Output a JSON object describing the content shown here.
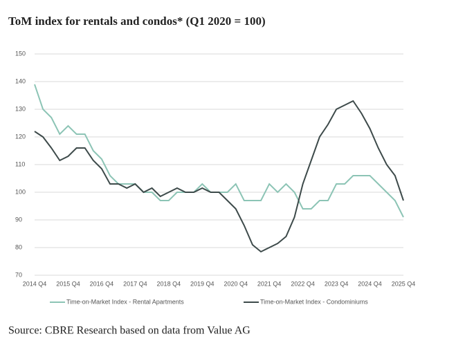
{
  "chart_data": {
    "type": "line",
    "title": "ToM index for rentals and condos* (Q1 2020 = 100)",
    "source": "Source: CBRE Research based on data from Value AG",
    "categories": [
      "2014 Q4",
      null,
      null,
      null,
      "2015 Q4",
      null,
      null,
      null,
      "2016 Q4",
      null,
      null,
      null,
      "2017 Q4",
      null,
      null,
      null,
      "2018 Q4",
      null,
      null,
      null,
      "2019 Q4",
      null,
      null,
      null,
      "2020 Q4",
      null,
      null,
      null,
      "2021 Q4",
      null,
      null,
      null,
      "2022 Q4",
      null,
      null,
      null,
      "2023 Q4",
      null,
      null,
      null,
      "2024 Q4",
      null,
      null,
      null,
      "2025 Q4"
    ],
    "series": [
      {
        "name": "Time-on-Market Index - Rental Apartments",
        "color": "#8cc4b5",
        "values": [
          139,
          130,
          127,
          121,
          124,
          121,
          121,
          115,
          112,
          106,
          103,
          103,
          103,
          100,
          100,
          97,
          97,
          100,
          100,
          100,
          103,
          100,
          100,
          100,
          103,
          97,
          97,
          97,
          103,
          100,
          103,
          100,
          94,
          94,
          97,
          97,
          103,
          103,
          106,
          106,
          106,
          103,
          100,
          97,
          91
        ]
      },
      {
        "name": "Time-on-Market Index - Condominiums",
        "color": "#3d4a4a",
        "values": [
          122,
          120,
          116,
          111.5,
          113,
          116,
          116,
          111.5,
          108.5,
          103,
          103,
          101.5,
          103,
          100,
          101.5,
          98.5,
          100,
          101.5,
          100,
          100,
          101.5,
          100,
          100,
          97,
          94,
          88,
          81,
          78.5,
          80,
          81.5,
          84,
          91,
          103,
          111.5,
          120,
          124.5,
          130,
          131.5,
          133,
          128.5,
          123,
          116,
          110,
          106,
          97
        ]
      }
    ],
    "ylim": [
      70,
      150
    ],
    "yticks": [
      70,
      80,
      90,
      100,
      110,
      120,
      130,
      140,
      150
    ],
    "grid": true
  }
}
